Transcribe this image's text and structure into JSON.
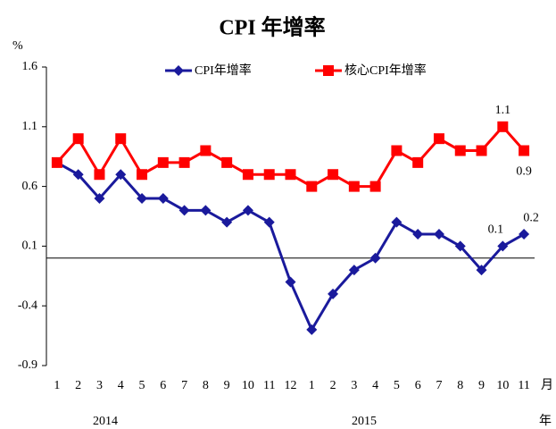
{
  "chart_data": {
    "type": "line",
    "title": "CPI 年增率",
    "y_unit": "%",
    "x_unit": "月",
    "year_unit": "年",
    "year_labels": [
      "2014",
      "2015"
    ],
    "categories": [
      "1",
      "2",
      "3",
      "4",
      "5",
      "6",
      "7",
      "8",
      "9",
      "10",
      "11",
      "12",
      "1",
      "2",
      "3",
      "4",
      "5",
      "6",
      "7",
      "8",
      "9",
      "10",
      "11"
    ],
    "series": [
      {
        "name": "CPI年增率",
        "color": "#1a1a9c",
        "marker": "diamond",
        "values": [
          0.8,
          0.7,
          0.5,
          0.7,
          0.5,
          0.5,
          0.4,
          0.4,
          0.3,
          0.4,
          0.3,
          -0.2,
          -0.6,
          -0.3,
          -0.1,
          0.0,
          0.3,
          0.2,
          0.2,
          0.1,
          -0.1,
          0.1,
          0.2
        ],
        "labeled_indices": [
          21,
          22
        ]
      },
      {
        "name": "核心CPI年增率",
        "color": "#ff0000",
        "marker": "square",
        "values": [
          0.8,
          1.0,
          0.7,
          1.0,
          0.7,
          0.8,
          0.8,
          0.9,
          0.8,
          0.7,
          0.7,
          0.7,
          0.6,
          0.7,
          0.6,
          0.6,
          0.9,
          0.8,
          1.0,
          0.9,
          0.9,
          1.1,
          0.9
        ],
        "labeled_indices": [
          21,
          22
        ]
      }
    ],
    "ylim": [
      -0.9,
      1.6
    ],
    "yticks": [
      1.6,
      1.1,
      0.6,
      0.1,
      -0.4,
      -0.9
    ],
    "grid": false
  }
}
